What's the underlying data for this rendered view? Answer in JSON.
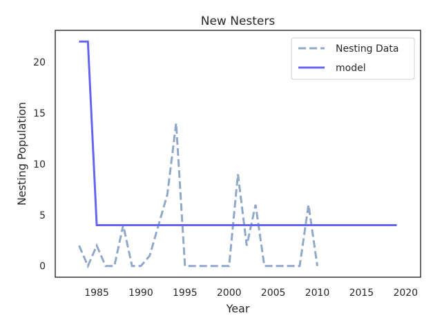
{
  "chart_data": {
    "type": "line",
    "title": "New Nesters",
    "xlabel": "Year",
    "ylabel": "Nesting Population",
    "xlim": [
      1980.3,
      2021.7
    ],
    "ylim": [
      -1.1,
      23.1
    ],
    "xticks": [
      1985,
      1990,
      1995,
      2000,
      2005,
      2010,
      2015,
      2020
    ],
    "yticks": [
      0,
      5,
      10,
      15,
      20
    ],
    "grid": false,
    "legend_position": "top-right",
    "series": [
      {
        "name": "Nesting Data",
        "style": "dashed",
        "color": "#8fa8c8",
        "x": [
          1983,
          1984,
          1985,
          1986,
          1987,
          1988,
          1989,
          1990,
          1991,
          1992,
          1993,
          1994,
          1995,
          1996,
          1997,
          1998,
          1999,
          2000,
          2001,
          2002,
          2003,
          2004,
          2005,
          2006,
          2007,
          2008,
          2009,
          2010
        ],
        "y": [
          2,
          0,
          2,
          0,
          0,
          4,
          0,
          0,
          1,
          4,
          7,
          14,
          0,
          0,
          0,
          0,
          0,
          0,
          9,
          2,
          6,
          0,
          0,
          0,
          0,
          0,
          6,
          0
        ]
      },
      {
        "name": "model",
        "style": "solid",
        "color": "#6464f0",
        "x": [
          1983,
          1984,
          1985,
          1986,
          1987,
          1988,
          1989,
          1990,
          1991,
          1992,
          1993,
          1994,
          1995,
          1996,
          1997,
          1998,
          1999,
          2000,
          2001,
          2002,
          2003,
          2004,
          2005,
          2006,
          2007,
          2008,
          2009,
          2010,
          2011,
          2012,
          2013,
          2014,
          2015,
          2016,
          2017,
          2018,
          2019
        ],
        "y": [
          22,
          22,
          4,
          4,
          4,
          4,
          4,
          4,
          4,
          4,
          4,
          4,
          4,
          4,
          4,
          4,
          4,
          4,
          4,
          4,
          4,
          4,
          4,
          4,
          4,
          4,
          4,
          4,
          4,
          4,
          4,
          4,
          4,
          4,
          4,
          4,
          4
        ]
      }
    ]
  }
}
